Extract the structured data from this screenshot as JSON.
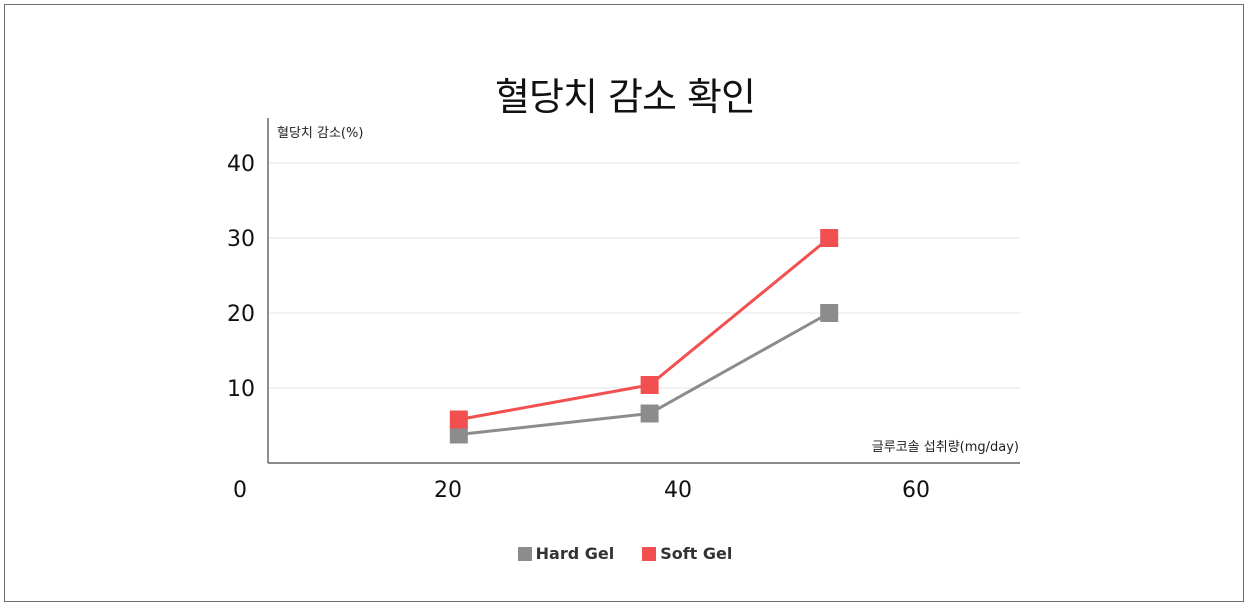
{
  "chart_data": {
    "type": "line",
    "title": "혈당치 감소 확인",
    "ylabel": "혈당치 감소(%)",
    "xlabel": "글루코솔 섭취량(mg/day)",
    "x_ticks": [
      "0",
      "20",
      "40",
      "60"
    ],
    "y_ticks": [
      "10",
      "20",
      "30",
      "40"
    ],
    "xlim": [
      0,
      67
    ],
    "ylim": [
      0,
      46
    ],
    "grid": true,
    "legend_position": "bottom",
    "series": [
      {
        "name": "Hard Gel",
        "color": "#8c8c8c",
        "x": [
          17,
          34,
          50
        ],
        "y": [
          3.8,
          6.6,
          20
        ]
      },
      {
        "name": "Soft Gel",
        "color": "#f25050",
        "x": [
          17,
          34,
          50
        ],
        "y": [
          5.8,
          10.4,
          30
        ]
      }
    ]
  }
}
